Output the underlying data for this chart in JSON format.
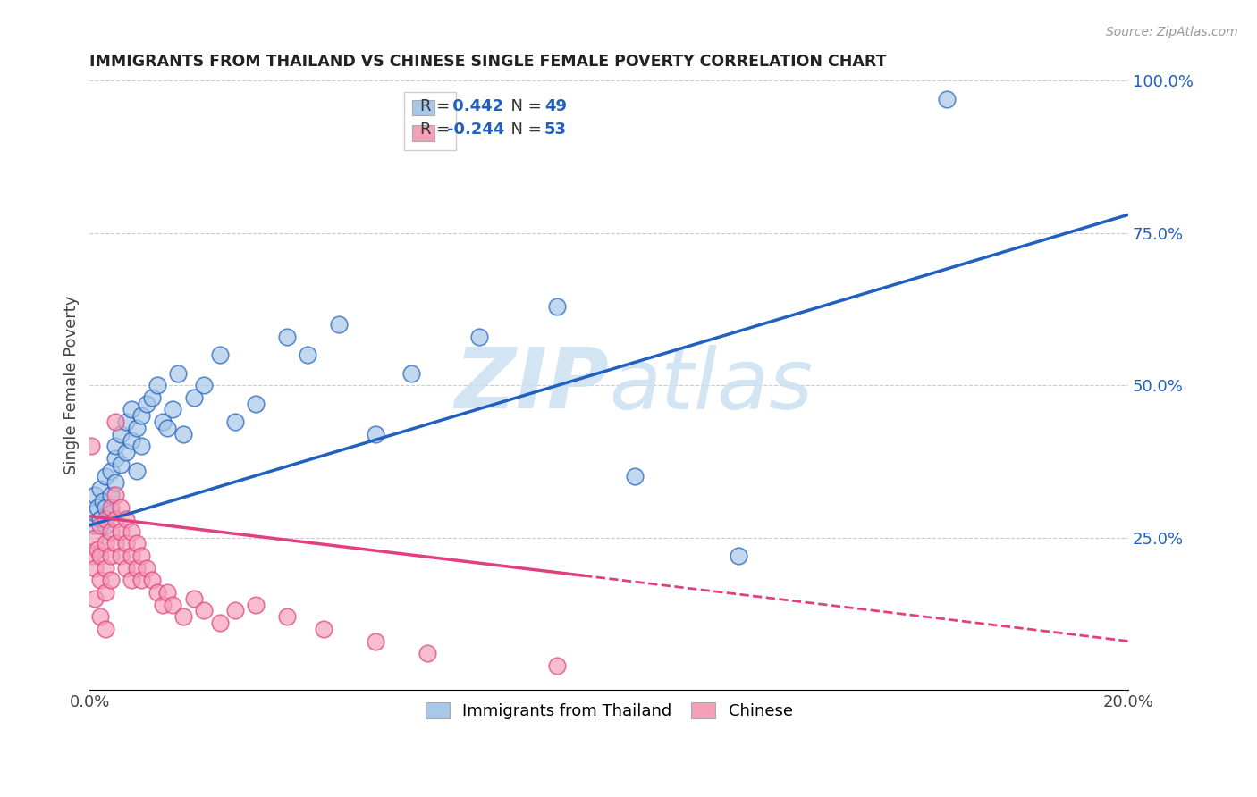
{
  "title": "IMMIGRANTS FROM THAILAND VS CHINESE SINGLE FEMALE POVERTY CORRELATION CHART",
  "source": "Source: ZipAtlas.com",
  "ylabel": "Single Female Poverty",
  "legend_label1": "Immigrants from Thailand",
  "legend_label2": "Chinese",
  "r1": 0.442,
  "n1": 49,
  "r2": -0.244,
  "n2": 53,
  "color1": "#a8c8e8",
  "color2": "#f4a0b8",
  "line_color1": "#2060c0",
  "line_color2": "#e04080",
  "watermark_color": "#cce0f0",
  "xlim": [
    0.0,
    0.2
  ],
  "ylim": [
    0.0,
    1.0
  ],
  "y_ticks_right": [
    0.25,
    0.5,
    0.75,
    1.0
  ],
  "y_tick_labels_right": [
    "25.0%",
    "50.0%",
    "75.0%",
    "100.0%"
  ],
  "scatter1_x": [
    0.0008,
    0.001,
    0.001,
    0.0015,
    0.002,
    0.002,
    0.0025,
    0.003,
    0.003,
    0.003,
    0.004,
    0.004,
    0.004,
    0.005,
    0.005,
    0.005,
    0.006,
    0.006,
    0.007,
    0.007,
    0.008,
    0.008,
    0.009,
    0.009,
    0.01,
    0.01,
    0.011,
    0.012,
    0.013,
    0.014,
    0.015,
    0.016,
    0.017,
    0.018,
    0.02,
    0.022,
    0.025,
    0.028,
    0.032,
    0.038,
    0.042,
    0.048,
    0.055,
    0.062,
    0.075,
    0.09,
    0.105,
    0.125,
    0.165
  ],
  "scatter1_y": [
    0.27,
    0.29,
    0.32,
    0.3,
    0.28,
    0.33,
    0.31,
    0.3,
    0.35,
    0.27,
    0.32,
    0.36,
    0.29,
    0.38,
    0.34,
    0.4,
    0.42,
    0.37,
    0.44,
    0.39,
    0.41,
    0.46,
    0.43,
    0.36,
    0.45,
    0.4,
    0.47,
    0.48,
    0.5,
    0.44,
    0.43,
    0.46,
    0.52,
    0.42,
    0.48,
    0.5,
    0.55,
    0.44,
    0.47,
    0.58,
    0.55,
    0.6,
    0.42,
    0.52,
    0.58,
    0.63,
    0.35,
    0.22,
    0.97
  ],
  "scatter2_x": [
    0.0003,
    0.0005,
    0.001,
    0.001,
    0.001,
    0.0015,
    0.002,
    0.002,
    0.002,
    0.002,
    0.003,
    0.003,
    0.003,
    0.003,
    0.003,
    0.004,
    0.004,
    0.004,
    0.004,
    0.005,
    0.005,
    0.005,
    0.005,
    0.006,
    0.006,
    0.006,
    0.007,
    0.007,
    0.007,
    0.008,
    0.008,
    0.008,
    0.009,
    0.009,
    0.01,
    0.01,
    0.011,
    0.012,
    0.013,
    0.014,
    0.015,
    0.016,
    0.018,
    0.02,
    0.022,
    0.025,
    0.028,
    0.032,
    0.038,
    0.045,
    0.055,
    0.065,
    0.09
  ],
  "scatter2_y": [
    0.4,
    0.22,
    0.25,
    0.2,
    0.15,
    0.23,
    0.27,
    0.22,
    0.18,
    0.12,
    0.28,
    0.24,
    0.2,
    0.16,
    0.1,
    0.3,
    0.26,
    0.22,
    0.18,
    0.32,
    0.28,
    0.24,
    0.44,
    0.3,
    0.26,
    0.22,
    0.28,
    0.24,
    0.2,
    0.26,
    0.22,
    0.18,
    0.24,
    0.2,
    0.22,
    0.18,
    0.2,
    0.18,
    0.16,
    0.14,
    0.16,
    0.14,
    0.12,
    0.15,
    0.13,
    0.11,
    0.13,
    0.14,
    0.12,
    0.1,
    0.08,
    0.06,
    0.04
  ],
  "trend1_x0": 0.0,
  "trend1_y0": 0.27,
  "trend1_x1": 0.2,
  "trend1_y1": 0.78,
  "trend2_x0": 0.0,
  "trend2_y0": 0.285,
  "trend2_x1": 0.2,
  "trend2_y1": 0.08,
  "trend2_dash_start": 0.095
}
